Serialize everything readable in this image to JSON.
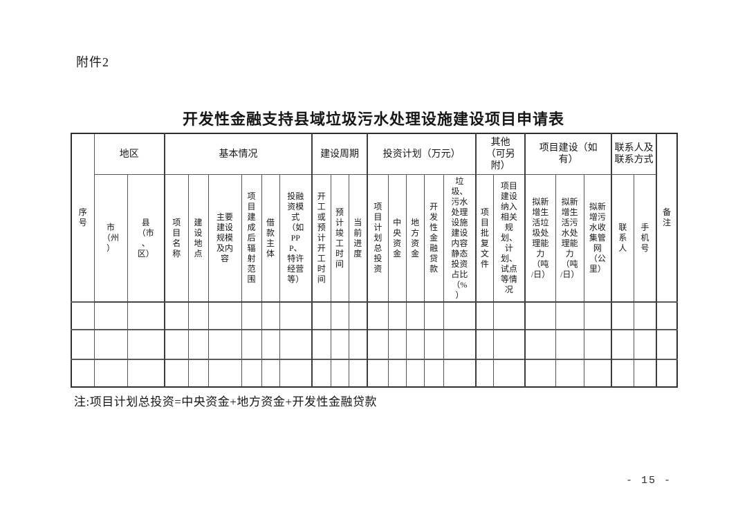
{
  "page": {
    "attachment_label": "附件2",
    "title": "开发性金融支持县域垃圾污水处理设施建设项目申请表",
    "footnote": "注:项目计划总投资=中央资金+地方资金+开发性金融贷款",
    "page_number": "- 15 -"
  },
  "table": {
    "group_headers": [
      {
        "label": "序号"
      },
      {
        "label": "地区"
      },
      {
        "label": "基本情况"
      },
      {
        "label": "建设周期"
      },
      {
        "label": "投资计划（万元）"
      },
      {
        "label": "其他（可另附）"
      },
      {
        "label": "项目建设（如有）"
      },
      {
        "label": "联系人及联系方式"
      },
      {
        "label": "备注"
      }
    ],
    "sub_headers": [
      "市（州）",
      "县（市、区）",
      "项目名称",
      "建设地点",
      "主要建设规模及内容",
      "项目建成后辐射范围",
      "借款主体",
      "投融资模式（如PPP、特许经营等）",
      "开工或预计开工时间",
      "预计竣工时间",
      "当前进度",
      "项目计划总投资",
      "中央资金",
      "地方资金",
      "开发性金融贷款",
      "垃圾、污水处理设施建设内容静态投资占比（%）",
      "项目批复文件",
      "项目建设纳入相关规划、计划、试点等情况",
      "拟新增生活垃圾处理能力（吨/日）",
      "拟新增生活污水处理能力（吨/日）",
      "拟新增污水收集管网（公里）",
      "联系人",
      "手机号"
    ],
    "empty_row_count": 3,
    "column_count": 25
  },
  "colors": {
    "page_background": "#ffffff",
    "text": "#161616",
    "border": "#3c3c3c"
  }
}
